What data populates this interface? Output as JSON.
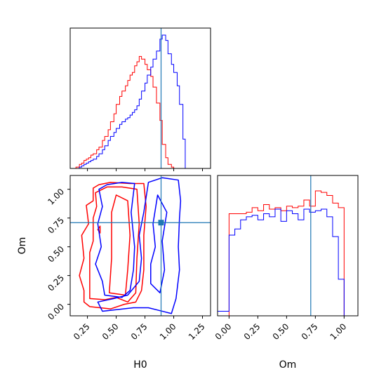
{
  "chart_data": {
    "type": "corner",
    "parameters": [
      "H0",
      "Om"
    ],
    "colors": {
      "red_run": "#ff0000",
      "blue_run": "#0000ff",
      "truth": "#1f77b4"
    },
    "truth": {
      "H0": 0.89,
      "Om": 0.71
    },
    "axes": {
      "H0": {
        "label": "H0",
        "range": [
          0.1,
          1.32
        ],
        "ticks": [
          "0.25",
          "0.50",
          "0.75",
          "1.00",
          "1.25"
        ]
      },
      "Om": {
        "label": "Om",
        "range": [
          -0.1,
          1.12
        ],
        "ticks": [
          "0.00",
          "0.25",
          "0.50",
          "0.75",
          "1.00"
        ]
      }
    },
    "hist_H0": {
      "bin_edges": [
        0.1,
        0.15,
        0.18,
        0.2,
        0.22,
        0.24,
        0.26,
        0.28,
        0.3,
        0.33,
        0.35,
        0.38,
        0.4,
        0.43,
        0.45,
        0.48,
        0.5,
        0.53,
        0.55,
        0.58,
        0.6,
        0.62,
        0.64,
        0.66,
        0.68,
        0.7,
        0.72,
        0.75,
        0.77,
        0.8,
        0.82,
        0.85,
        0.88,
        0.9,
        0.93,
        0.95,
        0.98,
        1.0,
        1.03,
        1.05,
        1.08,
        1.1,
        1.15
      ],
      "series": [
        {
          "color": "#ff0000",
          "values": [
            0,
            1,
            3,
            4,
            6,
            7,
            8,
            10,
            11,
            14,
            16,
            21,
            24,
            29,
            35,
            41,
            48,
            54,
            58,
            62,
            66,
            70,
            72,
            77,
            80,
            84,
            82,
            78,
            74,
            69,
            61,
            49,
            36,
            18,
            8,
            3,
            1,
            0,
            0,
            0,
            0,
            0
          ]
        },
        {
          "color": "#0000ff",
          "values": [
            0,
            0,
            1,
            2,
            3,
            4,
            5,
            6,
            7,
            9,
            11,
            14,
            17,
            21,
            24,
            27,
            30,
            33,
            35,
            37,
            38,
            40,
            42,
            44,
            47,
            52,
            58,
            64,
            70,
            76,
            82,
            88,
            97,
            100,
            96,
            86,
            78,
            72,
            62,
            48,
            22,
            0
          ]
        }
      ]
    },
    "hist_Om": {
      "bin_edges": [
        -0.1,
        -0.05,
        0.0,
        0.05,
        0.1,
        0.15,
        0.2,
        0.25,
        0.3,
        0.35,
        0.4,
        0.45,
        0.5,
        0.55,
        0.6,
        0.65,
        0.7,
        0.75,
        0.8,
        0.85,
        0.9,
        0.95,
        1.0,
        1.05
      ],
      "series": [
        {
          "color": "#ff0000",
          "values": [
            0,
            0,
            67,
            67,
            67,
            68,
            71,
            69,
            73,
            70,
            71,
            69,
            72,
            71,
            72,
            76,
            72,
            82,
            81,
            79,
            74,
            71,
            0
          ]
        },
        {
          "color": "#0000ff",
          "values": [
            3,
            3,
            53,
            57,
            63,
            65,
            66,
            63,
            67,
            65,
            70,
            62,
            69,
            67,
            63,
            70,
            68,
            69,
            70,
            65,
            52,
            24,
            0
          ]
        }
      ]
    },
    "contours_2d": [
      {
        "color": "#ff0000",
        "level": "outer",
        "points": [
          [
            0.22,
            0.02
          ],
          [
            0.27,
            -0.02
          ],
          [
            0.45,
            -0.04
          ],
          [
            0.57,
            0.0
          ],
          [
            0.67,
            0.02
          ],
          [
            0.72,
            0.12
          ],
          [
            0.74,
            0.3
          ],
          [
            0.74,
            0.6
          ],
          [
            0.76,
            0.85
          ],
          [
            0.74,
            1.05
          ],
          [
            0.62,
            1.05
          ],
          [
            0.45,
            1.06
          ],
          [
            0.35,
            1.04
          ],
          [
            0.3,
            1.01
          ],
          [
            0.3,
            0.9
          ],
          [
            0.24,
            0.86
          ],
          [
            0.26,
            0.7
          ],
          [
            0.2,
            0.6
          ],
          [
            0.22,
            0.4
          ],
          [
            0.18,
            0.25
          ],
          [
            0.22,
            0.12
          ]
        ]
      },
      {
        "color": "#ff0000",
        "level": "inner",
        "points": [
          [
            0.27,
            0.05
          ],
          [
            0.4,
            0.04
          ],
          [
            0.5,
            0.06
          ],
          [
            0.6,
            0.02
          ],
          [
            0.67,
            0.1
          ],
          [
            0.68,
            0.4
          ],
          [
            0.7,
            0.7
          ],
          [
            0.68,
            1.0
          ],
          [
            0.55,
            1.02
          ],
          [
            0.42,
            1.02
          ],
          [
            0.32,
            0.97
          ],
          [
            0.33,
            0.85
          ],
          [
            0.3,
            0.75
          ],
          [
            0.3,
            0.55
          ],
          [
            0.27,
            0.45
          ],
          [
            0.27,
            0.25
          ]
        ]
      },
      {
        "color": "#ff0000",
        "level": "core",
        "points": [
          [
            0.44,
            0.1
          ],
          [
            0.58,
            0.08
          ],
          [
            0.6,
            0.3
          ],
          [
            0.62,
            0.6
          ],
          [
            0.6,
            0.9
          ],
          [
            0.5,
            0.95
          ],
          [
            0.46,
            0.8
          ],
          [
            0.46,
            0.4
          ]
        ]
      },
      {
        "color": "#ff0000",
        "level": "island",
        "points": [
          [
            0.34,
            0.65
          ],
          [
            0.36,
            0.62
          ],
          [
            0.36,
            0.68
          ]
        ]
      },
      {
        "color": "#0000ff",
        "level": "outer",
        "points": [
          [
            0.34,
            0.02
          ],
          [
            0.38,
            -0.06
          ],
          [
            0.65,
            -0.03
          ],
          [
            0.78,
            -0.03
          ],
          [
            0.9,
            -0.06
          ],
          [
            0.98,
            -0.08
          ],
          [
            1.02,
            0.05
          ],
          [
            1.05,
            0.3
          ],
          [
            1.04,
            0.5
          ],
          [
            1.05,
            0.75
          ],
          [
            1.06,
            0.9
          ],
          [
            1.04,
            1.08
          ],
          [
            0.9,
            1.1
          ],
          [
            0.78,
            1.06
          ],
          [
            0.74,
            0.8
          ],
          [
            0.7,
            0.6
          ],
          [
            0.72,
            0.4
          ],
          [
            0.7,
            0.2
          ],
          [
            0.6,
            0.08
          ],
          [
            0.48,
            0.05
          ]
        ]
      },
      {
        "color": "#0000ff",
        "level": "inner",
        "points": [
          [
            0.4,
            0.08
          ],
          [
            0.55,
            0.06
          ],
          [
            0.62,
            0.12
          ],
          [
            0.65,
            0.3
          ],
          [
            0.66,
            0.5
          ],
          [
            0.63,
            0.8
          ],
          [
            0.66,
            1.05
          ],
          [
            0.55,
            1.06
          ],
          [
            0.42,
            1.04
          ],
          [
            0.35,
            1.0
          ],
          [
            0.38,
            0.85
          ],
          [
            0.34,
            0.7
          ],
          [
            0.37,
            0.5
          ],
          [
            0.32,
            0.35
          ],
          [
            0.38,
            0.2
          ]
        ]
      },
      {
        "color": "#0000ff",
        "level": "core",
        "points": [
          [
            0.8,
            0.18
          ],
          [
            0.88,
            0.1
          ],
          [
            0.92,
            0.3
          ],
          [
            0.9,
            0.55
          ],
          [
            0.94,
            0.8
          ],
          [
            0.86,
            0.95
          ],
          [
            0.82,
            0.7
          ],
          [
            0.84,
            0.5
          ],
          [
            0.8,
            0.35
          ]
        ]
      }
    ]
  }
}
